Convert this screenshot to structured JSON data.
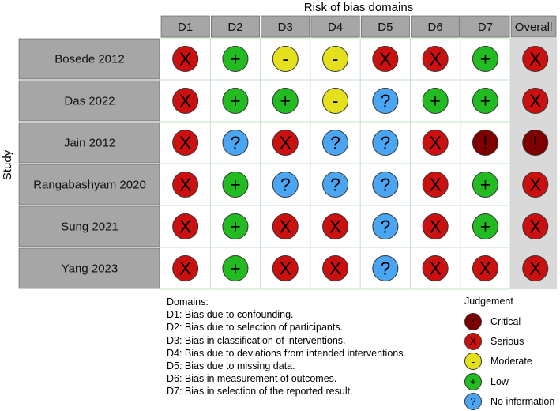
{
  "chart_data": {
    "type": "table",
    "title": "Risk of bias domains",
    "ylabel": "Study",
    "columns": [
      "D1",
      "D2",
      "D3",
      "D4",
      "D5",
      "D6",
      "D7",
      "Overall"
    ],
    "studies": [
      "Bosede 2012",
      "Das 2022",
      "Jain 2012",
      "Rangabashyam 2020",
      "Sung 2021",
      "Yang 2023"
    ],
    "judgements": [
      [
        "serious",
        "low",
        "moderate",
        "moderate",
        "serious",
        "serious",
        "low",
        "serious"
      ],
      [
        "serious",
        "low",
        "low",
        "moderate",
        "no_information",
        "low",
        "low",
        "serious"
      ],
      [
        "serious",
        "no_information",
        "serious",
        "no_information",
        "no_information",
        "serious",
        "critical",
        "critical"
      ],
      [
        "serious",
        "low",
        "no_information",
        "no_information",
        "no_information",
        "serious",
        "low",
        "serious"
      ],
      [
        "serious",
        "low",
        "serious",
        "serious",
        "no_information",
        "serious",
        "low",
        "serious"
      ],
      [
        "serious",
        "low",
        "serious",
        "serious",
        "no_information",
        "serious",
        "serious",
        "serious"
      ]
    ],
    "judgement_levels": {
      "critical": {
        "label": "Critical",
        "symbol": "!",
        "color": "#7f0000"
      },
      "serious": {
        "label": "Serious",
        "symbol": "X",
        "color": "#cc1010"
      },
      "moderate": {
        "label": "Moderate",
        "symbol": "-",
        "color": "#e5e01c"
      },
      "low": {
        "label": "Low",
        "symbol": "+",
        "color": "#22bb22"
      },
      "no_information": {
        "label": "No information",
        "symbol": "?",
        "color": "#4aa6f2"
      }
    },
    "domains_title": "Domains:",
    "domains": [
      "D1: Bias due to confounding.",
      "D2: Bias due to selection of participants.",
      "D3: Bias in classification of interventions.",
      "D4: Bias due to deviations from intended interventions.",
      "D5: Bias due to missing data.",
      "D6: Bias in measurement of outcomes.",
      "D7: Bias in selection of the reported result."
    ],
    "judgement_title": "Judgement",
    "judgement_order": [
      "critical",
      "serious",
      "moderate",
      "low",
      "no_information"
    ]
  },
  "colors": {
    "header_fill": "#a6a6a6",
    "study_fill": "#a6a6a6",
    "overall_fill": "#d9d9d9",
    "grid_line": "#c8e2c8",
    "border": "#ffffff"
  }
}
